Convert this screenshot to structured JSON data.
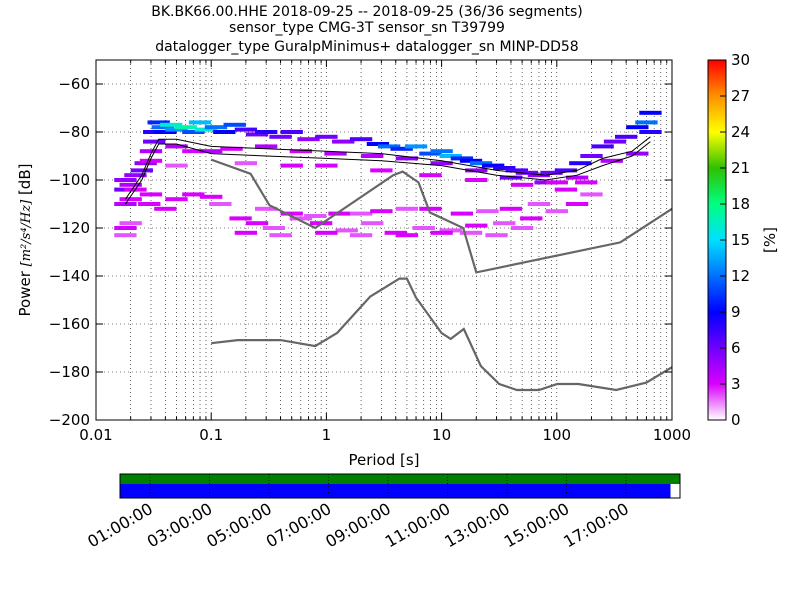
{
  "chart_data": {
    "type": "heatmap",
    "title_lines": [
      "BK.BK66.00.HHE   2018-09-25 -- 2018-09-25  (36/36 segments)",
      "sensor_type CMG-3T sensor_sn T39799",
      "datalogger_type GuralpMinimus+ datalogger_sn MINP-DD58"
    ],
    "xlabel": "Period [s]",
    "ylabel_prefix": "Power ",
    "ylabel_unit": "[m²/s⁴/Hz]",
    "ylabel_suffix": " [dB]",
    "x_scale": "log",
    "xlim": [
      0.01,
      1000
    ],
    "ylim": [
      -200,
      -50
    ],
    "xticks": [
      {
        "v": 0.01,
        "label": "0.01"
      },
      {
        "v": 0.1,
        "label": "0.1"
      },
      {
        "v": 1,
        "label": "1"
      },
      {
        "v": 10,
        "label": "10"
      },
      {
        "v": 100,
        "label": "100"
      },
      {
        "v": 1000,
        "label": "1000"
      }
    ],
    "yticks": [
      {
        "v": -60,
        "label": "−60"
      },
      {
        "v": -80,
        "label": "−80"
      },
      {
        "v": -100,
        "label": "−100"
      },
      {
        "v": -120,
        "label": "−120"
      },
      {
        "v": -140,
        "label": "−140"
      },
      {
        "v": -160,
        "label": "−160"
      },
      {
        "v": -180,
        "label": "−180"
      },
      {
        "v": -200,
        "label": "−200"
      }
    ],
    "grid": "dotted",
    "colorbar": {
      "label": "[%]",
      "min": 0,
      "max": 30,
      "ticks": [
        {
          "v": 0,
          "label": "0"
        },
        {
          "v": 3,
          "label": "3"
        },
        {
          "v": 6,
          "label": "6"
        },
        {
          "v": 9,
          "label": "9"
        },
        {
          "v": 12,
          "label": "12"
        },
        {
          "v": 15,
          "label": "15"
        },
        {
          "v": 18,
          "label": "18"
        },
        {
          "v": 21,
          "label": "21"
        },
        {
          "v": 24,
          "label": "24"
        },
        {
          "v": 27,
          "label": "27"
        },
        {
          "v": 30,
          "label": "30"
        }
      ],
      "colors": [
        "#ffffff",
        "#d800ff",
        "#7000ff",
        "#0000ff",
        "#0070ff",
        "#00e0ff",
        "#00ff80",
        "#30c000",
        "#ffff00",
        "#ff9000",
        "#ff0000"
      ]
    },
    "noise_models": [
      {
        "name": "NHNM",
        "points": [
          [
            0.1,
            -91.5
          ],
          [
            0.22,
            -97.4
          ],
          [
            0.32,
            -110.5
          ],
          [
            0.8,
            -120
          ],
          [
            3.8,
            -98
          ],
          [
            4.6,
            -96.5
          ],
          [
            6.3,
            -101
          ],
          [
            7.9,
            -113.5
          ],
          [
            15.4,
            -120
          ],
          [
            20,
            -138.5
          ],
          [
            354.8,
            -126
          ],
          [
            1000,
            -112
          ]
        ]
      },
      {
        "name": "NLNM",
        "points": [
          [
            0.1,
            -168
          ],
          [
            0.17,
            -166.7
          ],
          [
            0.4,
            -166.7
          ],
          [
            0.8,
            -169.2
          ],
          [
            1.24,
            -163.7
          ],
          [
            2.4,
            -148.6
          ],
          [
            4.3,
            -141.1
          ],
          [
            5,
            -141.1
          ],
          [
            6,
            -149
          ],
          [
            10,
            -163.8
          ],
          [
            12,
            -166.2
          ],
          [
            15.6,
            -162.1
          ],
          [
            21.9,
            -177.5
          ],
          [
            31.6,
            -185
          ],
          [
            45,
            -187.5
          ],
          [
            70,
            -187.5
          ],
          [
            101,
            -185
          ],
          [
            154,
            -185
          ],
          [
            328,
            -187.5
          ],
          [
            600,
            -184.4
          ],
          [
            1000,
            -178
          ]
        ]
      }
    ],
    "percentile_lines": [
      {
        "name": "mode",
        "points": [
          [
            0.018,
            -110
          ],
          [
            0.025,
            -100
          ],
          [
            0.03,
            -91
          ],
          [
            0.035,
            -85
          ],
          [
            0.05,
            -85
          ],
          [
            0.1,
            -89
          ],
          [
            0.3,
            -90
          ],
          [
            1,
            -91
          ],
          [
            3,
            -92
          ],
          [
            10,
            -94
          ],
          [
            30,
            -98
          ],
          [
            80,
            -100
          ],
          [
            150,
            -98
          ],
          [
            250,
            -94
          ],
          [
            450,
            -90
          ],
          [
            650,
            -84
          ]
        ]
      },
      {
        "name": "mean",
        "points": [
          [
            0.018,
            -108
          ],
          [
            0.025,
            -98
          ],
          [
            0.03,
            -89
          ],
          [
            0.035,
            -83
          ],
          [
            0.05,
            -83
          ],
          [
            0.1,
            -86
          ],
          [
            0.3,
            -87
          ],
          [
            1,
            -88
          ],
          [
            3,
            -89
          ],
          [
            10,
            -92
          ],
          [
            30,
            -96
          ],
          [
            80,
            -98
          ],
          [
            150,
            -96
          ],
          [
            250,
            -91
          ],
          [
            450,
            -88
          ],
          [
            650,
            -82
          ]
        ]
      }
    ],
    "psd_cells": [
      [
        0.018,
        -123,
        2
      ],
      [
        0.018,
        -120,
        3
      ],
      [
        0.018,
        -110,
        4
      ],
      [
        0.018,
        -104,
        6
      ],
      [
        0.018,
        -100,
        5
      ],
      [
        0.02,
        -102,
        4
      ],
      [
        0.02,
        -108,
        3
      ],
      [
        0.022,
        -98,
        5
      ],
      [
        0.022,
        -104,
        3
      ],
      [
        0.025,
        -96,
        6
      ],
      [
        0.027,
        -93,
        5
      ],
      [
        0.029,
        -110,
        3
      ],
      [
        0.03,
        -88,
        4
      ],
      [
        0.032,
        -80,
        8
      ],
      [
        0.032,
        -84,
        6
      ],
      [
        0.035,
        -76,
        10
      ],
      [
        0.038,
        -78,
        12
      ],
      [
        0.04,
        -80,
        9
      ],
      [
        0.045,
        -77,
        16
      ],
      [
        0.05,
        -79,
        13
      ],
      [
        0.06,
        -78,
        17
      ],
      [
        0.07,
        -80,
        11
      ],
      [
        0.08,
        -76,
        14
      ],
      [
        0.09,
        -79,
        16
      ],
      [
        0.11,
        -78,
        12
      ],
      [
        0.13,
        -80,
        9
      ],
      [
        0.16,
        -77,
        11
      ],
      [
        0.2,
        -79,
        7
      ],
      [
        0.25,
        -81,
        6
      ],
      [
        0.3,
        -80,
        8
      ],
      [
        0.4,
        -82,
        6
      ],
      [
        0.5,
        -80,
        7
      ],
      [
        0.7,
        -83,
        5
      ],
      [
        1,
        -82,
        6
      ],
      [
        1.4,
        -84,
        5
      ],
      [
        2,
        -83,
        7
      ],
      [
        2.8,
        -85,
        9
      ],
      [
        3.5,
        -86,
        12
      ],
      [
        4.5,
        -87,
        10
      ],
      [
        6,
        -86,
        13
      ],
      [
        8,
        -89,
        11
      ],
      [
        10,
        -88,
        12
      ],
      [
        12,
        -90,
        14
      ],
      [
        15,
        -91,
        10
      ],
      [
        18,
        -92,
        9
      ],
      [
        22,
        -93,
        12
      ],
      [
        28,
        -94,
        9
      ],
      [
        35,
        -95,
        8
      ],
      [
        45,
        -96,
        7
      ],
      [
        55,
        -97,
        6
      ],
      [
        70,
        -98,
        5
      ],
      [
        90,
        -97,
        6
      ],
      [
        120,
        -96,
        7
      ],
      [
        160,
        -93,
        8
      ],
      [
        200,
        -90,
        6
      ],
      [
        250,
        -86,
        7
      ],
      [
        320,
        -84,
        6
      ],
      [
        400,
        -82,
        7
      ],
      [
        500,
        -78,
        9
      ],
      [
        600,
        -76,
        12
      ],
      [
        650,
        -72,
        9
      ],
      [
        650,
        -80,
        8
      ],
      [
        0.05,
        -86,
        4
      ],
      [
        0.07,
        -88,
        3
      ],
      [
        0.1,
        -88,
        4
      ],
      [
        0.15,
        -87,
        3
      ],
      [
        0.3,
        -86,
        4
      ],
      [
        0.6,
        -88,
        3
      ],
      [
        1.2,
        -89,
        4
      ],
      [
        2.5,
        -90,
        4
      ],
      [
        5,
        -91,
        5
      ],
      [
        10,
        -93,
        5
      ],
      [
        20,
        -96,
        5
      ],
      [
        40,
        -99,
        6
      ],
      [
        80,
        -101,
        5
      ],
      [
        150,
        -99,
        4
      ],
      [
        300,
        -92,
        4
      ],
      [
        500,
        -89,
        5
      ],
      [
        0.03,
        -92,
        3
      ],
      [
        0.05,
        -94,
        2
      ],
      [
        0.2,
        -93,
        2
      ],
      [
        0.5,
        -94,
        3
      ],
      [
        1,
        -94,
        3
      ],
      [
        3,
        -96,
        3
      ],
      [
        8,
        -98,
        3
      ],
      [
        20,
        -100,
        3
      ],
      [
        50,
        -102,
        3
      ],
      [
        100,
        -101,
        3
      ],
      [
        0.02,
        -118,
        2
      ],
      [
        0.03,
        -106,
        3
      ],
      [
        0.04,
        -112,
        3
      ],
      [
        0.05,
        -108,
        3
      ],
      [
        0.07,
        -106,
        3
      ],
      [
        0.1,
        -107,
        3
      ],
      [
        0.12,
        -110,
        2
      ],
      [
        0.18,
        -116,
        3
      ],
      [
        0.25,
        -118,
        3
      ],
      [
        0.35,
        -120,
        2
      ],
      [
        0.6,
        -116,
        2
      ],
      [
        0.9,
        -118,
        3
      ],
      [
        1.5,
        -121,
        2
      ],
      [
        2.5,
        -118,
        2
      ],
      [
        4,
        -122,
        3
      ],
      [
        7,
        -120,
        2
      ],
      [
        12,
        -121,
        2
      ],
      [
        20,
        -119,
        3
      ],
      [
        35,
        -118,
        2
      ],
      [
        60,
        -116,
        3
      ],
      [
        100,
        -113,
        2
      ],
      [
        150,
        -110,
        3
      ],
      [
        200,
        -106,
        2
      ],
      [
        0.2,
        -122,
        3
      ],
      [
        0.4,
        -123,
        2
      ],
      [
        1,
        -122,
        3
      ],
      [
        2,
        -123,
        2
      ],
      [
        5,
        -123,
        3
      ],
      [
        10,
        -122,
        3
      ],
      [
        18,
        -122,
        2
      ],
      [
        30,
        -123,
        2
      ],
      [
        50,
        -120,
        2
      ],
      [
        0.3,
        -112,
        2
      ],
      [
        0.5,
        -114,
        3
      ],
      [
        0.8,
        -115,
        2
      ],
      [
        1.3,
        -114,
        3
      ],
      [
        2,
        -114,
        2
      ],
      [
        3,
        -113,
        3
      ],
      [
        5,
        -112,
        2
      ],
      [
        8,
        -112,
        3
      ],
      [
        15,
        -114,
        3
      ],
      [
        25,
        -113,
        2
      ],
      [
        40,
        -112,
        3
      ],
      [
        70,
        -110,
        2
      ],
      [
        120,
        -104,
        3
      ],
      [
        180,
        -101,
        3
      ]
    ],
    "timeline": {
      "tick_labels": [
        "01:00:00",
        "03:00:00",
        "05:00:00",
        "07:00:00",
        "09:00:00",
        "11:00:00",
        "13:00:00",
        "15:00:00",
        "17:00:00"
      ],
      "data_color": "#0000ff",
      "gap_color": "#008000",
      "coverage_fraction": 0.983
    }
  }
}
